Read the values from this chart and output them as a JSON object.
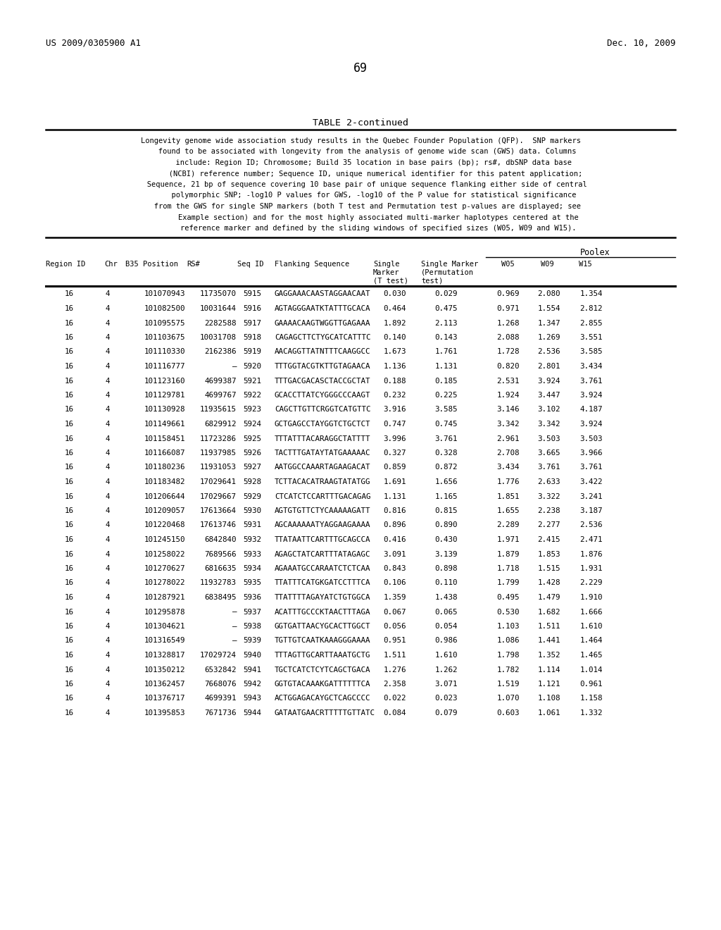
{
  "header_left": "US 2009/0305900 A1",
  "header_right": "Dec. 10, 2009",
  "page_number": "69",
  "table_title": "TABLE 2-continued",
  "desc_lines": [
    "Longevity genome wide association study results in the Quebec Founder Population (QFP).  SNP markers",
    "   found to be associated with longevity from the analysis of genome wide scan (GWS) data. Columns",
    "      include: Region ID; Chromosome; Build 35 location in base pairs (bp); rs#, dbSNP data base",
    "       (NCBI) reference number; Sequence ID, unique numerical identifier for this patent application;",
    "   Sequence, 21 bp of sequence covering 10 base pair of unique sequence flanking either side of central",
    "      polymorphic SNP; -log10 P values for GWS, -log10 of the P value for statistical significance",
    "   from the GWS for single SNP markers (both T test and Permutation test p-values are displayed; see",
    "        Example section) and for the most highly associated multi-marker haplotypes centered at the",
    "        reference marker and defined by the sliding windows of specified sizes (W05, W09 and W15)."
  ],
  "poolex_label": "Poolex",
  "rows": [
    [
      "16",
      "4",
      "101070943",
      "11735070",
      "5915",
      "GAGGAAACAASTAGGAACAAT",
      "0.030",
      "0.029",
      "0.969",
      "2.080",
      "1.354"
    ],
    [
      "16",
      "4",
      "101082500",
      "10031644",
      "5916",
      "AGTAGGGAATKTATTTGCACA",
      "0.464",
      "0.475",
      "0.971",
      "1.554",
      "2.812"
    ],
    [
      "16",
      "4",
      "101095575",
      "2282588",
      "5917",
      "GAAAACAAGTWGGTTGAGAAA",
      "1.892",
      "2.113",
      "1.268",
      "1.347",
      "2.855"
    ],
    [
      "16",
      "4",
      "101103675",
      "10031708",
      "5918",
      "CAGAGCTTCTYGCATCATTTC",
      "0.140",
      "0.143",
      "2.088",
      "1.269",
      "3.551"
    ],
    [
      "16",
      "4",
      "101110330",
      "2162386",
      "5919",
      "AACAGGTTATNTTTCAAGGCC",
      "1.673",
      "1.761",
      "1.728",
      "2.536",
      "3.585"
    ],
    [
      "16",
      "4",
      "101116777",
      "–",
      "5920",
      "TTTGGTACGTKTTGTAGAACA",
      "1.136",
      "1.131",
      "0.820",
      "2.801",
      "3.434"
    ],
    [
      "16",
      "4",
      "101123160",
      "4699387",
      "5921",
      "TTTGACGACASCTACCGCTAT",
      "0.188",
      "0.185",
      "2.531",
      "3.924",
      "3.761"
    ],
    [
      "16",
      "4",
      "101129781",
      "4699767",
      "5922",
      "GCACCTTATCYGGGCCCAAGT",
      "0.232",
      "0.225",
      "1.924",
      "3.447",
      "3.924"
    ],
    [
      "16",
      "4",
      "101130928",
      "11935615",
      "5923",
      "CAGCTTGTTCRGGTCATGTTC",
      "3.916",
      "3.585",
      "3.146",
      "3.102",
      "4.187"
    ],
    [
      "16",
      "4",
      "101149661",
      "6829912",
      "5924",
      "GCTGAGCCTAYGGTCTGCTCT",
      "0.747",
      "0.745",
      "3.342",
      "3.342",
      "3.924"
    ],
    [
      "16",
      "4",
      "101158451",
      "11723286",
      "5925",
      "TTTATTTACARAGGCTATTTT",
      "3.996",
      "3.761",
      "2.961",
      "3.503",
      "3.503"
    ],
    [
      "16",
      "4",
      "101166087",
      "11937985",
      "5926",
      "TACTTTGATAYTATGAAAAAC",
      "0.327",
      "0.328",
      "2.708",
      "3.665",
      "3.966"
    ],
    [
      "16",
      "4",
      "101180236",
      "11931053",
      "5927",
      "AATGGCCAAARTAGAAGACAT",
      "0.859",
      "0.872",
      "3.434",
      "3.761",
      "3.761"
    ],
    [
      "16",
      "4",
      "101183482",
      "17029641",
      "5928",
      "TCTTACACATRAAGTATATGG",
      "1.691",
      "1.656",
      "1.776",
      "2.633",
      "3.422"
    ],
    [
      "16",
      "4",
      "101206644",
      "17029667",
      "5929",
      "CTCATCTCCARTTTGACAGAG",
      "1.131",
      "1.165",
      "1.851",
      "3.322",
      "3.241"
    ],
    [
      "16",
      "4",
      "101209057",
      "17613664",
      "5930",
      "AGTGTGTTCTYCAAAAAGATT",
      "0.816",
      "0.815",
      "1.655",
      "2.238",
      "3.187"
    ],
    [
      "16",
      "4",
      "101220468",
      "17613746",
      "5931",
      "AGCAAAAAATYAGGAAGAAAA",
      "0.896",
      "0.890",
      "2.289",
      "2.277",
      "2.536"
    ],
    [
      "16",
      "4",
      "101245150",
      "6842840",
      "5932",
      "TTATAATTCARTTTGCAGCCA",
      "0.416",
      "0.430",
      "1.971",
      "2.415",
      "2.471"
    ],
    [
      "16",
      "4",
      "101258022",
      "7689566",
      "5933",
      "AGAGCTATCARTTTATAGAGC",
      "3.091",
      "3.139",
      "1.879",
      "1.853",
      "1.876"
    ],
    [
      "16",
      "4",
      "101270627",
      "6816635",
      "5934",
      "AGAAATGCCARAATCTCTCAA",
      "0.843",
      "0.898",
      "1.718",
      "1.515",
      "1.931"
    ],
    [
      "16",
      "4",
      "101278022",
      "11932783",
      "5935",
      "TTATTTCATGKGATCCTTTCA",
      "0.106",
      "0.110",
      "1.799",
      "1.428",
      "2.229"
    ],
    [
      "16",
      "4",
      "101287921",
      "6838495",
      "5936",
      "TTATTTTAGAYATCTGTGGCA",
      "1.359",
      "1.438",
      "0.495",
      "1.479",
      "1.910"
    ],
    [
      "16",
      "4",
      "101295878",
      "–",
      "5937",
      "ACATTTGCCCKTAACTTTAGA",
      "0.067",
      "0.065",
      "0.530",
      "1.682",
      "1.666"
    ],
    [
      "16",
      "4",
      "101304621",
      "–",
      "5938",
      "GGTGATTAACYGCACTTGGCT",
      "0.056",
      "0.054",
      "1.103",
      "1.511",
      "1.610"
    ],
    [
      "16",
      "4",
      "101316549",
      "–",
      "5939",
      "TGTTGTCAATKAAAGGGAAAA",
      "0.951",
      "0.986",
      "1.086",
      "1.441",
      "1.464"
    ],
    [
      "16",
      "4",
      "101328817",
      "17029724",
      "5940",
      "TTTAGTTGCARTTAAATGCTG",
      "1.511",
      "1.610",
      "1.798",
      "1.352",
      "1.465"
    ],
    [
      "16",
      "4",
      "101350212",
      "6532842",
      "5941",
      "TGCTCATCTCYTCAGCTGACA",
      "1.276",
      "1.262",
      "1.782",
      "1.114",
      "1.014"
    ],
    [
      "16",
      "4",
      "101362457",
      "7668076",
      "5942",
      "GGTGTACAAAKGATTTTTTCA",
      "2.358",
      "3.071",
      "1.519",
      "1.121",
      "0.961"
    ],
    [
      "16",
      "4",
      "101376717",
      "4699391",
      "5943",
      "ACTGGAGACAYGCTCAGCCCC",
      "0.022",
      "0.023",
      "1.070",
      "1.108",
      "1.158"
    ],
    [
      "16",
      "4",
      "101395853",
      "7671736",
      "5944",
      "GATAATGAACRTTTTTGTTATC",
      "0.084",
      "0.079",
      "0.603",
      "1.061",
      "1.332"
    ]
  ],
  "bg_color": "#ffffff",
  "text_color": "#000000"
}
